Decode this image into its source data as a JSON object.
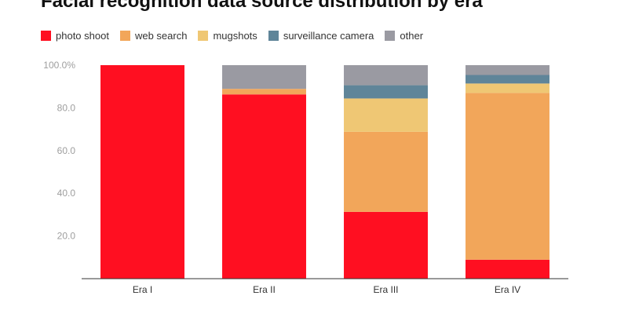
{
  "chart_data": {
    "type": "bar",
    "stacked": true,
    "title": "Facial recognition data source distribution by era",
    "categories": [
      "Era I",
      "Era II",
      "Era III",
      "Era IV"
    ],
    "series": [
      {
        "name": "photo shoot",
        "color": "#ff0f21",
        "values": [
          100,
          86.3,
          31.3,
          8.9
        ]
      },
      {
        "name": "web search",
        "color": "#f2a65a",
        "values": [
          0,
          2.6,
          37.5,
          78.1
        ]
      },
      {
        "name": "mugshots",
        "color": "#efc774",
        "values": [
          0,
          0,
          15.6,
          4.4
        ]
      },
      {
        "name": "surveillance camera",
        "color": "#5f8599",
        "values": [
          0,
          0,
          6.2,
          4.0
        ]
      },
      {
        "name": "other",
        "color": "#9a9aa2",
        "values": [
          0,
          11.1,
          9.4,
          4.6
        ]
      }
    ],
    "yticks": [
      "100.0%",
      "80.0",
      "60.0",
      "40.0",
      "20.0"
    ],
    "ytick_values": [
      100,
      80,
      60,
      40,
      20
    ],
    "ylim": [
      0,
      100
    ],
    "legend_position": "top",
    "grid": false
  }
}
